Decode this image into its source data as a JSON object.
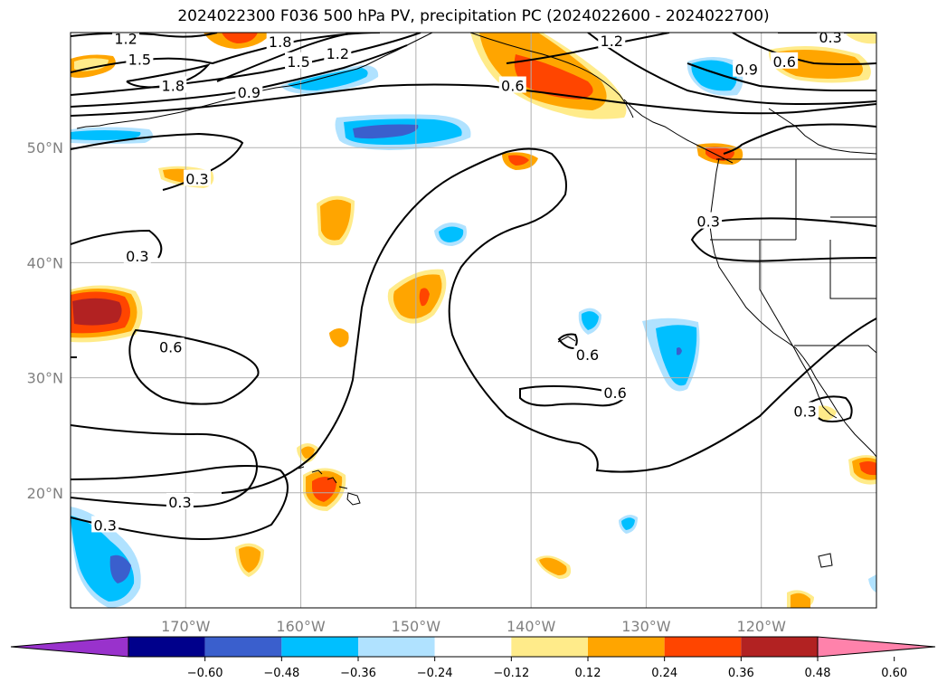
{
  "title": "2024022300 F036 500 hPa PV, precipitation PC (2024022600 - 2024022700)",
  "lat_ticks": [
    {
      "lat": 50,
      "label": "50°N"
    },
    {
      "lat": 40,
      "label": "40°N"
    },
    {
      "lat": 30,
      "label": "30°N"
    },
    {
      "lat": 20,
      "label": "20°N"
    }
  ],
  "lon_ticks": [
    {
      "lon": -170,
      "label": "170°W"
    },
    {
      "lon": -160,
      "label": "160°W"
    },
    {
      "lon": -150,
      "label": "150°W"
    },
    {
      "lon": -140,
      "label": "140°W"
    },
    {
      "lon": -130,
      "label": "130°W"
    },
    {
      "lon": -120,
      "label": "120°W"
    }
  ],
  "colorbar": {
    "colors": [
      "#9932cc",
      "#00008b",
      "#3a5fcd",
      "#00bfff",
      "#b0e2ff",
      "#ffffff",
      "#ffeb8a",
      "#ffa500",
      "#ff4500",
      "#b22222",
      "#ff82ab"
    ],
    "ticks": [
      "−0.60",
      "−0.48",
      "−0.36",
      "−0.24",
      "−0.12",
      "0.12",
      "0.24",
      "0.36",
      "0.48",
      "0.60"
    ]
  },
  "pv_labels": [
    {
      "text": "1.2",
      "lon": -175.2,
      "lat": 59.5
    },
    {
      "text": "1.5",
      "lon": -174.0,
      "lat": 57.7
    },
    {
      "text": "1.8",
      "lon": -171.1,
      "lat": 55.4
    },
    {
      "text": "1.8",
      "lon": -161.8,
      "lat": 59.2
    },
    {
      "text": "1.5",
      "lon": -160.2,
      "lat": 57.5
    },
    {
      "text": "1.2",
      "lon": -156.8,
      "lat": 58.2
    },
    {
      "text": "0.9",
      "lon": -164.5,
      "lat": 54.8
    },
    {
      "text": "0.6",
      "lon": -141.6,
      "lat": 55.4
    },
    {
      "text": "1.2",
      "lon": -133.0,
      "lat": 59.3
    },
    {
      "text": "0.9",
      "lon": -121.3,
      "lat": 56.8
    },
    {
      "text": "0.6",
      "lon": -118.0,
      "lat": 57.5
    },
    {
      "text": "0.3",
      "lon": -114.0,
      "lat": 59.6
    },
    {
      "text": "0.3",
      "lon": -169.0,
      "lat": 47.3
    },
    {
      "text": "0.3",
      "lon": -174.2,
      "lat": 40.6
    },
    {
      "text": "0.6",
      "lon": -171.3,
      "lat": 32.7
    },
    {
      "text": "0.3",
      "lon": -124.6,
      "lat": 43.6
    },
    {
      "text": "0.6",
      "lon": -135.1,
      "lat": 32.0
    },
    {
      "text": "0.6",
      "lon": -132.7,
      "lat": 28.7
    },
    {
      "text": "0.3",
      "lon": -170.5,
      "lat": 19.2
    },
    {
      "text": "0.3",
      "lon": -177.0,
      "lat": 17.2
    },
    {
      "text": "0.3",
      "lon": -116.2,
      "lat": 27.1
    }
  ]
}
